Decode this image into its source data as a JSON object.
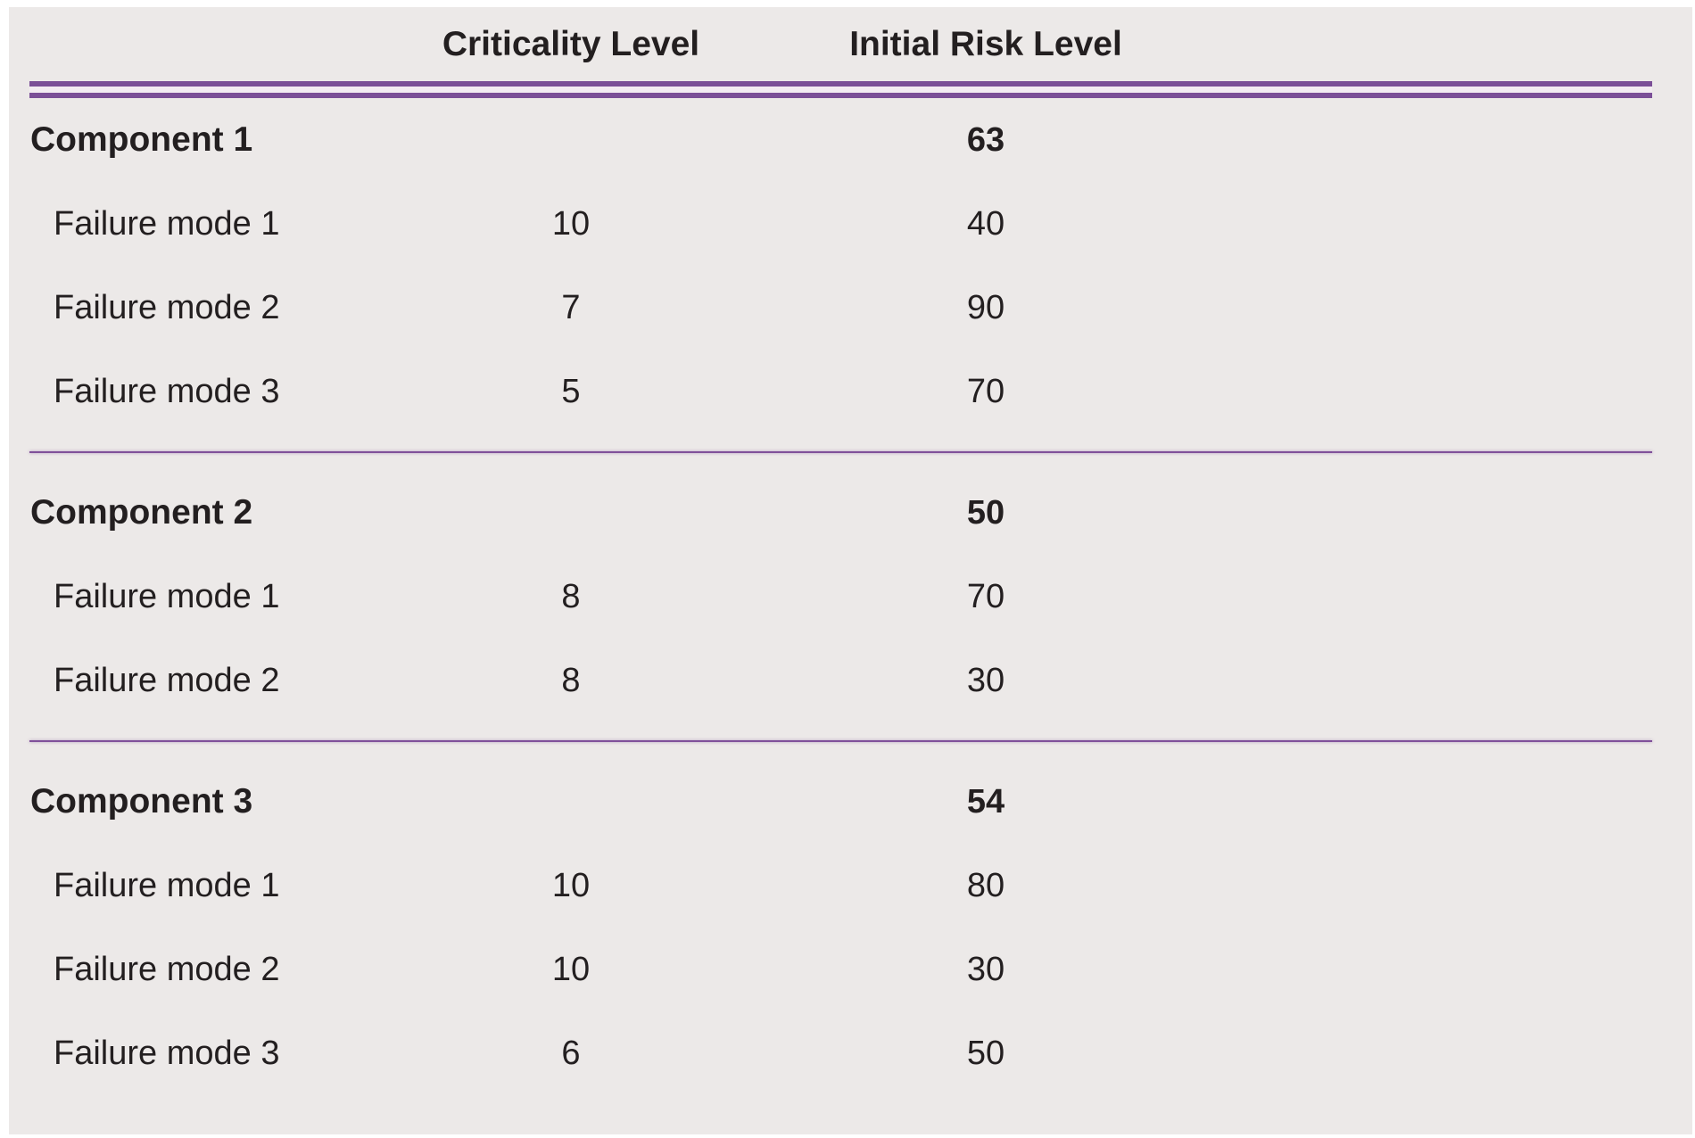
{
  "colors": {
    "panel_background": "#ece9e8",
    "accent_purple": "#7b4f97",
    "double_line_gap": "#f3ecf2",
    "text": "#231f20"
  },
  "header": {
    "criticality": "Criticality Level",
    "risk": "Initial Risk Level"
  },
  "sections": [
    {
      "component": "Component 1",
      "initial_risk_level": "63",
      "rows": [
        {
          "label": "Failure mode 1",
          "criticality": "10",
          "risk": "40"
        },
        {
          "label": "Failure mode 2",
          "criticality": "7",
          "risk": "90"
        },
        {
          "label": "Failure mode 3",
          "criticality": "5",
          "risk": "70"
        }
      ]
    },
    {
      "component": "Component 2",
      "initial_risk_level": "50",
      "rows": [
        {
          "label": "Failure mode 1",
          "criticality": "8",
          "risk": "70"
        },
        {
          "label": "Failure mode 2",
          "criticality": "8",
          "risk": "30"
        }
      ]
    },
    {
      "component": "Component 3",
      "initial_risk_level": "54",
      "rows": [
        {
          "label": "Failure mode 1",
          "criticality": "10",
          "risk": "80"
        },
        {
          "label": "Failure mode 2",
          "criticality": "10",
          "risk": "30"
        },
        {
          "label": "Failure mode 3",
          "criticality": "6",
          "risk": "50"
        }
      ]
    }
  ]
}
